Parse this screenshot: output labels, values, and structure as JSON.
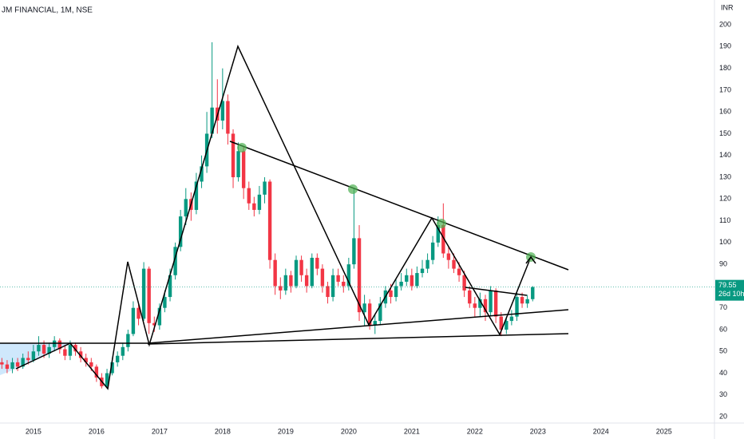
{
  "chart_data": {
    "type": "candlestick",
    "title": "JM FINANCIAL, 1M, NSE",
    "y_unit": "INR",
    "countdown": "26d 10h",
    "up_color": "#089981",
    "down_color": "#f23645",
    "xlim": [
      2014.47,
      2025.8
    ],
    "xticks": [
      2015,
      2016,
      2017,
      2018,
      2019,
      2020,
      2021,
      2022,
      2023,
      2024,
      2025
    ],
    "ylim": [
      17.1,
      211.4
    ],
    "yticks": [
      20,
      30,
      40,
      50,
      60,
      70,
      80,
      90,
      100,
      110,
      120,
      130,
      140,
      150,
      160,
      170,
      180,
      190,
      200
    ],
    "x": [
      2014.5,
      2014.583,
      2014.667,
      2014.75,
      2014.833,
      2014.917,
      2015,
      2015.083,
      2015.167,
      2015.25,
      2015.333,
      2015.417,
      2015.5,
      2015.583,
      2015.667,
      2015.75,
      2015.833,
      2015.917,
      2016,
      2016.083,
      2016.167,
      2016.25,
      2016.333,
      2016.417,
      2016.5,
      2016.583,
      2016.667,
      2016.75,
      2016.833,
      2016.917,
      2017,
      2017.083,
      2017.167,
      2017.25,
      2017.333,
      2017.417,
      2017.5,
      2017.583,
      2017.667,
      2017.75,
      2017.833,
      2017.917,
      2018,
      2018.083,
      2018.167,
      2018.25,
      2018.333,
      2018.417,
      2018.5,
      2018.583,
      2018.667,
      2018.75,
      2018.833,
      2018.917,
      2019,
      2019.083,
      2019.167,
      2019.25,
      2019.333,
      2019.417,
      2019.5,
      2019.583,
      2019.667,
      2019.75,
      2019.833,
      2019.917,
      2020,
      2020.083,
      2020.167,
      2020.25,
      2020.333,
      2020.417,
      2020.5,
      2020.583,
      2020.667,
      2020.75,
      2020.833,
      2020.917,
      2021,
      2021.083,
      2021.167,
      2021.25,
      2021.333,
      2021.417,
      2021.5,
      2021.583,
      2021.667,
      2021.75,
      2021.833,
      2021.917,
      2022,
      2022.083,
      2022.167,
      2022.25,
      2022.333,
      2022.417,
      2022.5,
      2022.583,
      2022.667,
      2022.75,
      2022.833,
      2022.917
    ],
    "open": [
      45,
      44,
      42,
      45,
      43,
      47,
      46,
      50,
      53,
      49,
      52,
      55,
      51,
      48,
      53,
      50,
      47,
      45,
      43,
      38,
      34,
      40,
      45,
      48,
      52,
      58,
      70,
      65,
      88,
      63,
      62,
      70,
      75,
      85,
      98,
      112,
      120,
      115,
      128,
      135,
      150,
      162,
      156,
      165,
      150,
      130,
      142,
      125,
      118,
      115,
      122,
      128,
      92,
      80,
      78,
      85,
      80,
      92,
      85,
      80,
      93,
      88,
      80,
      75,
      85,
      82,
      80,
      90,
      102,
      68,
      72,
      62,
      64,
      72,
      78,
      75,
      80,
      82,
      85,
      80,
      86,
      88,
      92,
      100,
      108,
      95,
      92,
      88,
      85,
      78,
      72,
      70,
      74,
      68,
      78,
      66,
      60,
      64,
      66,
      75,
      72,
      74
    ],
    "high": [
      47,
      46,
      47,
      47,
      49,
      50,
      53,
      57,
      55,
      54,
      57,
      56,
      53,
      55,
      54,
      52,
      49,
      47,
      44,
      40,
      42,
      47,
      50,
      54,
      60,
      73,
      72,
      91,
      89,
      66,
      72,
      78,
      88,
      100,
      115,
      125,
      123,
      132,
      140,
      160,
      192,
      175,
      180,
      168,
      152,
      146,
      144,
      128,
      121,
      126,
      130,
      129,
      95,
      84,
      88,
      87,
      94,
      94,
      88,
      95,
      95,
      90,
      82,
      88,
      88,
      85,
      93,
      125,
      108,
      76,
      74,
      67,
      75,
      80,
      81,
      83,
      86,
      88,
      88,
      89,
      92,
      95,
      103,
      112,
      118,
      98,
      95,
      91,
      87,
      80,
      75,
      77,
      76,
      80,
      79,
      68,
      66,
      69,
      77,
      77,
      76,
      80
    ],
    "low": [
      42,
      40,
      40,
      41,
      42,
      44,
      45,
      48,
      47,
      47,
      50,
      49,
      46,
      46,
      48,
      45,
      43,
      41,
      36,
      33,
      33,
      39,
      43,
      46,
      50,
      57,
      62,
      64,
      58,
      59,
      60,
      68,
      73,
      83,
      96,
      108,
      110,
      113,
      125,
      132,
      148,
      150,
      152,
      145,
      125,
      128,
      120,
      115,
      112,
      113,
      118,
      88,
      76,
      74,
      76,
      77,
      79,
      82,
      77,
      79,
      85,
      77,
      72,
      73,
      80,
      77,
      78,
      88,
      64,
      62,
      60,
      58,
      62,
      70,
      72,
      73,
      78,
      80,
      78,
      79,
      84,
      86,
      90,
      98,
      93,
      88,
      86,
      82,
      75,
      70,
      66,
      66,
      64,
      66,
      63,
      57,
      58,
      62,
      64,
      70,
      70,
      73
    ],
    "close": [
      44,
      42,
      45,
      43,
      47,
      46,
      50,
      53,
      49,
      52,
      55,
      51,
      48,
      53,
      50,
      47,
      45,
      43,
      38,
      34,
      40,
      45,
      48,
      52,
      58,
      70,
      65,
      88,
      63,
      62,
      70,
      75,
      85,
      98,
      112,
      120,
      115,
      128,
      135,
      150,
      162,
      156,
      165,
      150,
      130,
      142,
      125,
      118,
      115,
      122,
      128,
      92,
      80,
      78,
      85,
      80,
      92,
      85,
      80,
      93,
      88,
      80,
      75,
      85,
      82,
      80,
      90,
      102,
      68,
      72,
      62,
      64,
      72,
      78,
      75,
      80,
      82,
      85,
      80,
      86,
      88,
      92,
      100,
      108,
      95,
      92,
      88,
      85,
      78,
      72,
      70,
      74,
      68,
      78,
      66,
      60,
      64,
      66,
      75,
      72,
      74,
      79.55
    ]
  }
}
